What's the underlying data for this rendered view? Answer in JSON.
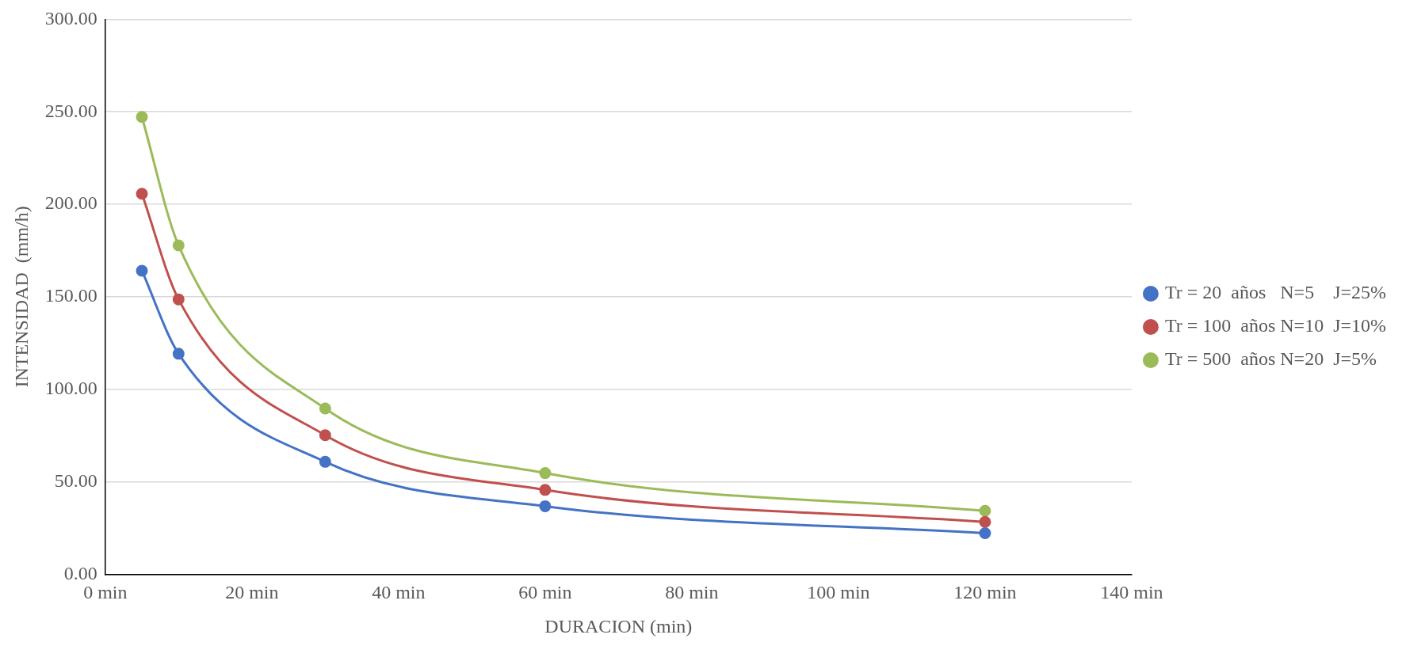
{
  "chart_data": {
    "type": "line",
    "xlabel": "DURACION (min)",
    "ylabel": "INTENSIDAD  (mm/h)",
    "x": [
      5,
      10,
      30,
      60,
      120
    ],
    "series": [
      {
        "name": "Tr = 20  años   N=5    J=25%",
        "color": "#4472c4",
        "values": [
          164.1,
          119.2,
          60.8,
          36.8,
          22.2
        ]
      },
      {
        "name": "Tr = 100  años N=10  J=10%",
        "color": "#c0504d",
        "values": [
          205.7,
          148.6,
          75.2,
          45.6,
          28.3
        ]
      },
      {
        "name": "Tr = 500  años N=20  J=5%",
        "color": "#9bbb59",
        "values": [
          247.2,
          177.8,
          89.6,
          54.7,
          34.3
        ]
      }
    ],
    "xlim": [
      0,
      140
    ],
    "xticks": [
      {
        "value": 0,
        "label": "0 min"
      },
      {
        "value": 20,
        "label": "20 min"
      },
      {
        "value": 40,
        "label": "40 min"
      },
      {
        "value": 60,
        "label": "60 min"
      },
      {
        "value": 80,
        "label": "80 min"
      },
      {
        "value": 100,
        "label": "100 min"
      },
      {
        "value": 120,
        "label": "120 min"
      },
      {
        "value": 140,
        "label": "140 min"
      }
    ],
    "ylim": [
      0,
      300
    ],
    "yticks": [
      {
        "value": 0,
        "label": "0.00"
      },
      {
        "value": 50,
        "label": "50.00"
      },
      {
        "value": 100,
        "label": "100.00"
      },
      {
        "value": 150,
        "label": "150.00"
      },
      {
        "value": 200,
        "label": "200.00"
      },
      {
        "value": 250,
        "label": "250.00"
      },
      {
        "value": 300,
        "label": "300.00"
      }
    ],
    "grid": "y",
    "legend": "right",
    "marker": "circle",
    "line_style": "solid"
  }
}
